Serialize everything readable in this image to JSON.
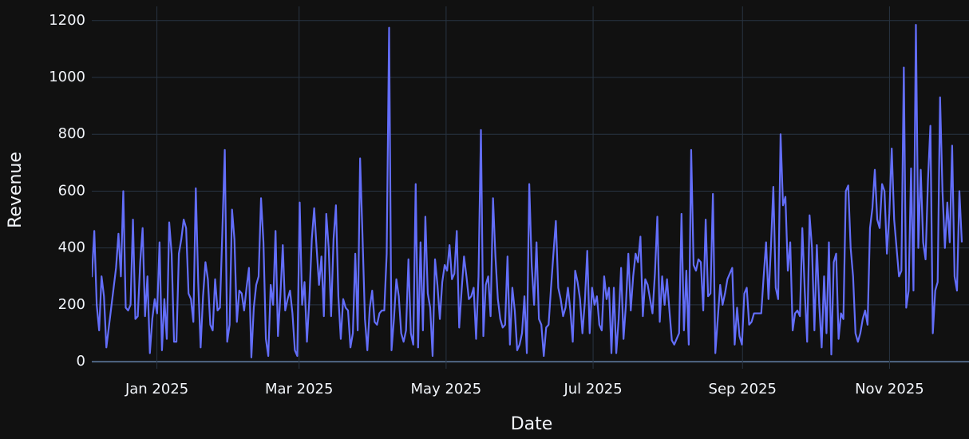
{
  "chart_data": {
    "type": "line",
    "x_label": "Date",
    "y_label": "Revenue",
    "color": "#636efa",
    "xlim": [
      "2024-12",
      "2025-12"
    ],
    "xticks": [
      {
        "value": "2025-01",
        "label": "Jan 2025"
      },
      {
        "value": "2025-03",
        "label": "Mar 2025"
      },
      {
        "value": "2025-05",
        "label": "May 2025"
      },
      {
        "value": "2025-07",
        "label": "Jul 2025"
      },
      {
        "value": "2025-09",
        "label": "Sep 2025"
      },
      {
        "value": "2025-11",
        "label": "Nov 2025"
      }
    ],
    "ylim": [
      -25,
      1250
    ],
    "yticks": [
      0,
      200,
      400,
      600,
      800,
      1000,
      1200
    ],
    "grid": true,
    "values": [
      230,
      640,
      610,
      330,
      300,
      460,
      200,
      110,
      300,
      230,
      50,
      120,
      190,
      260,
      330,
      450,
      300,
      600,
      190,
      180,
      200,
      500,
      150,
      160,
      350,
      470,
      160,
      300,
      30,
      150,
      220,
      170,
      420,
      40,
      220,
      80,
      490,
      380,
      70,
      70,
      380,
      430,
      500,
      470,
      240,
      220,
      140,
      610,
      280,
      50,
      230,
      350,
      290,
      130,
      110,
      290,
      180,
      190,
      460,
      745,
      70,
      130,
      535,
      430,
      140,
      250,
      240,
      180,
      260,
      330,
      15,
      190,
      270,
      300,
      575,
      420,
      80,
      20,
      270,
      200,
      460,
      90,
      230,
      410,
      180,
      220,
      250,
      170,
      40,
      20,
      560,
      200,
      280,
      70,
      220,
      430,
      540,
      400,
      270,
      370,
      160,
      520,
      400,
      160,
      430,
      550,
      230,
      80,
      220,
      190,
      180,
      50,
      100,
      380,
      110,
      715,
      440,
      150,
      40,
      190,
      250,
      140,
      130,
      170,
      180,
      180,
      380,
      1175,
      40,
      150,
      290,
      230,
      100,
      70,
      110,
      360,
      100,
      60,
      625,
      50,
      420,
      110,
      510,
      240,
      190,
      20,
      360,
      270,
      150,
      280,
      340,
      320,
      410,
      290,
      310,
      460,
      120,
      250,
      370,
      300,
      220,
      230,
      260,
      80,
      300,
      815,
      90,
      270,
      300,
      160,
      575,
      370,
      220,
      150,
      120,
      130,
      370,
      60,
      260,
      180,
      40,
      60,
      100,
      230,
      30,
      625,
      340,
      200,
      420,
      150,
      130,
      20,
      120,
      130,
      260,
      380,
      495,
      260,
      220,
      160,
      190,
      260,
      180,
      70,
      320,
      280,
      220,
      100,
      210,
      390,
      100,
      260,
      200,
      230,
      130,
      110,
      300,
      220,
      260,
      30,
      260,
      30,
      150,
      330,
      80,
      200,
      380,
      180,
      300,
      380,
      350,
      440,
      160,
      290,
      270,
      220,
      170,
      310,
      510,
      140,
      300,
      200,
      290,
      180,
      75,
      60,
      80,
      100,
      520,
      110,
      320,
      60,
      745,
      340,
      320,
      360,
      350,
      180,
      500,
      230,
      240,
      590,
      30,
      150,
      270,
      200,
      240,
      290,
      310,
      330,
      60,
      190,
      90,
      60,
      240,
      260,
      130,
      140,
      170,
      170,
      170,
      170,
      300,
      420,
      220,
      400,
      615,
      260,
      220,
      800,
      550,
      580,
      320,
      420,
      110,
      170,
      180,
      160,
      470,
      250,
      70,
      515,
      400,
      110,
      410,
      200,
      50,
      300,
      100,
      420,
      25,
      350,
      380,
      80,
      170,
      150,
      600,
      620,
      400,
      300,
      100,
      70,
      100,
      150,
      180,
      130,
      470,
      540,
      675,
      500,
      470,
      625,
      600,
      380,
      520,
      750,
      500,
      400,
      300,
      320,
      1035,
      190,
      250,
      680,
      250,
      1185,
      400,
      675,
      420,
      360,
      640,
      830,
      100,
      250,
      280,
      930,
      600,
      400,
      560,
      420,
      760,
      300,
      250,
      600,
      420
    ]
  }
}
